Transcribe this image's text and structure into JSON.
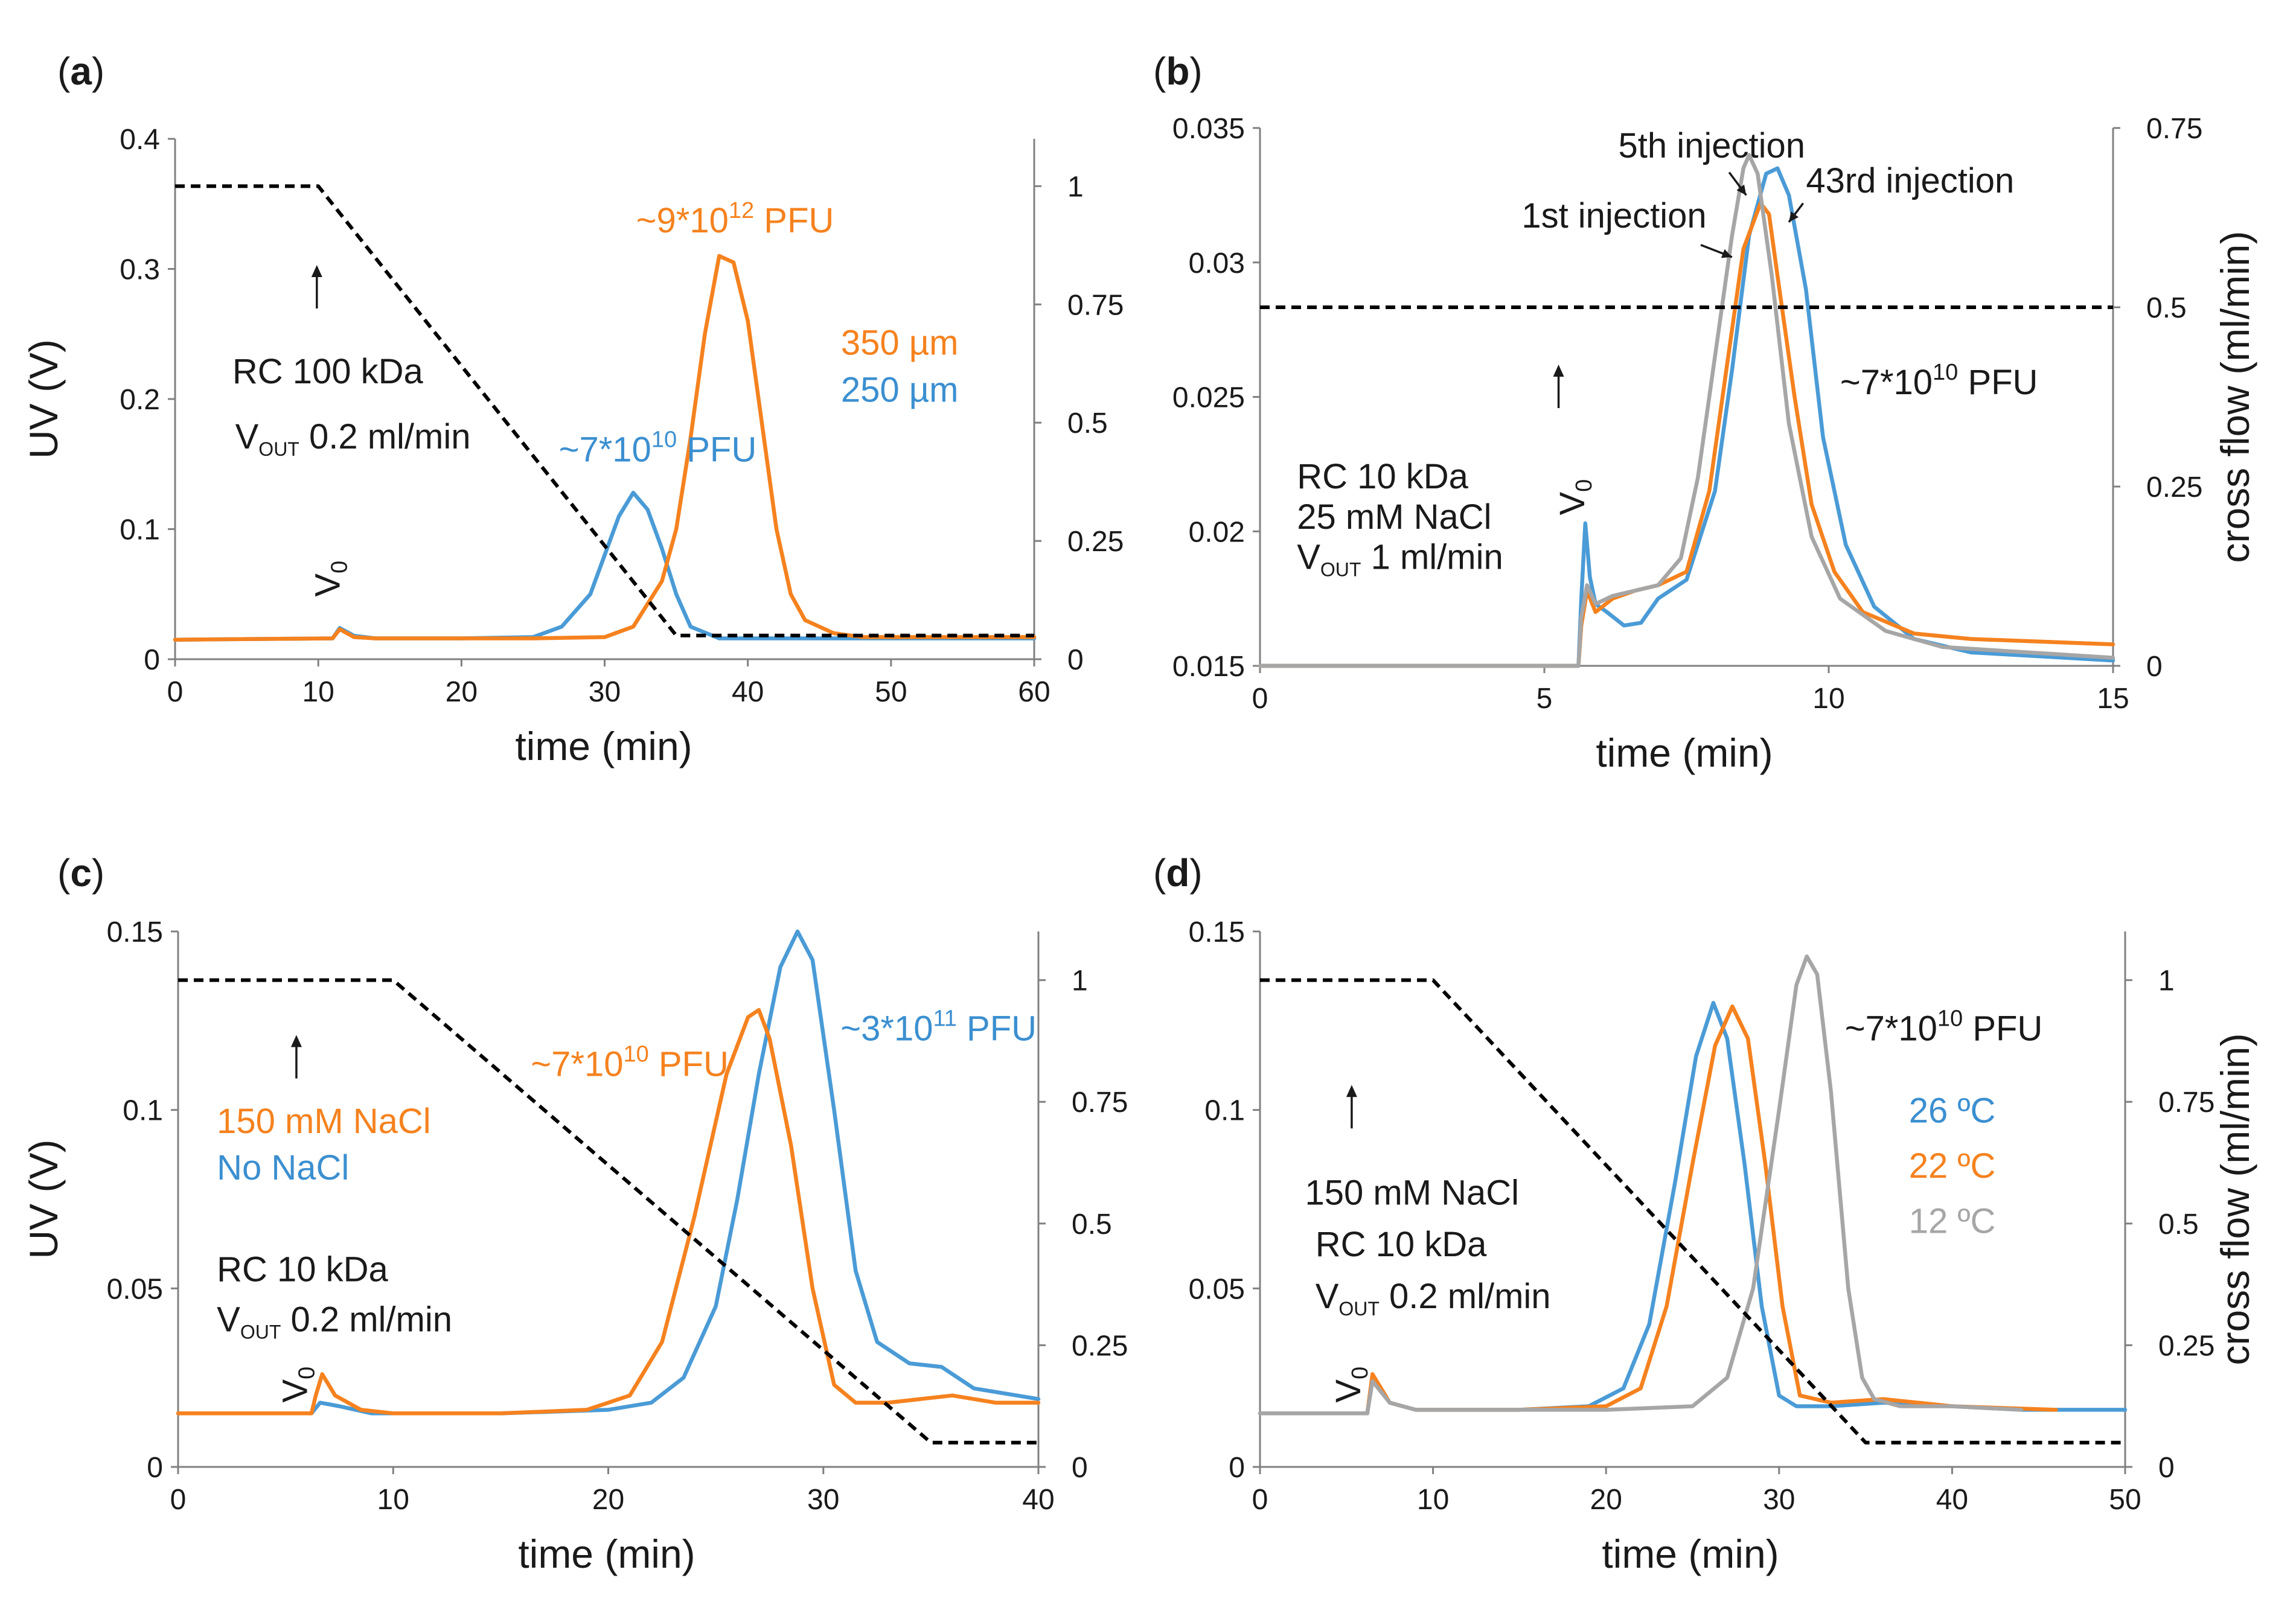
{
  "chart_data": [
    {
      "panel_label": "(a)",
      "type": "line",
      "xlabel": "time (min)",
      "ylabel": "UV (V)",
      "y2label": "",
      "xlim": [
        0,
        60
      ],
      "ylim": [
        0,
        0.4
      ],
      "y2lim": [
        0,
        1.1
      ],
      "xticks": [
        "0",
        "10",
        "20",
        "30",
        "40",
        "50",
        "60"
      ],
      "yticks": [
        "0",
        "0.1",
        "0.2",
        "0.3",
        "0.4"
      ],
      "y2ticks": [
        "0",
        "0.25",
        "0.5",
        "0.75",
        "1"
      ],
      "series": [
        {
          "name": "250 µm",
          "color": "#4a9bd6",
          "axis": "y",
          "dash": false,
          "x": [
            0,
            11.0,
            11.5,
            12.5,
            14,
            20,
            25,
            27,
            29,
            30,
            31,
            32,
            33,
            34,
            35,
            36,
            38,
            40,
            42,
            50,
            60
          ],
          "y": [
            0.015,
            0.016,
            0.024,
            0.018,
            0.016,
            0.016,
            0.017,
            0.025,
            0.05,
            0.08,
            0.11,
            0.128,
            0.115,
            0.085,
            0.05,
            0.025,
            0.016,
            0.016,
            0.016,
            0.016,
            0.016
          ]
        },
        {
          "name": "350 µm",
          "color": "#f5821f",
          "axis": "y",
          "dash": false,
          "x": [
            0,
            11.0,
            11.5,
            12.5,
            14,
            25,
            30,
            32,
            34,
            35,
            36,
            37,
            38,
            39,
            40,
            41,
            42,
            43,
            44,
            46,
            48,
            60
          ],
          "y": [
            0.015,
            0.016,
            0.023,
            0.017,
            0.016,
            0.016,
            0.017,
            0.025,
            0.06,
            0.1,
            0.17,
            0.25,
            0.31,
            0.305,
            0.26,
            0.18,
            0.1,
            0.05,
            0.03,
            0.02,
            0.017,
            0.017
          ]
        },
        {
          "name": "cross flow",
          "color": "#000000",
          "axis": "y2",
          "dash": true,
          "x": [
            0,
            10,
            35,
            60
          ],
          "y": [
            1,
            1,
            0.05,
            0.05
          ]
        }
      ],
      "annotations": [
        {
          "text": "RC 100 kDa",
          "color": "#1a1a1a",
          "x": 4.0,
          "y": 0.212
        },
        {
          "text": "~7*10",
          "sup": "10",
          "after": " PFU",
          "color": "#3b8fd0",
          "x": 26.8,
          "y": 0.152
        },
        {
          "text": "~9*10",
          "sup": "12",
          "after": " PFU",
          "color": "#f5821f",
          "x": 32.2,
          "y": 0.328
        },
        {
          "text": "350 µm",
          "color": "#f5821f",
          "x": 46.5,
          "y": 0.234
        },
        {
          "text": "250 µm",
          "color": "#3b8fd0",
          "x": 46.5,
          "y": 0.198
        }
      ],
      "vout_label": {
        "pre": "V",
        "sub": "OUT",
        "post": " 0.2 ml/min",
        "x": 4.2,
        "y": 0.162
      },
      "v0_label": {
        "x": 11.5,
        "y": 0.048
      },
      "arrows": [
        {
          "x": 9.9,
          "y": 0.303
        }
      ]
    },
    {
      "panel_label": "(b)",
      "type": "line",
      "xlabel": "time (min)",
      "ylabel": "",
      "y2label": "cross flow (ml/min)",
      "xlim": [
        0,
        15
      ],
      "ylim": [
        0.015,
        0.035
      ],
      "y2lim": [
        0,
        0.75
      ],
      "xticks": [
        "0",
        "5",
        "10",
        "15"
      ],
      "yticks": [
        "0.015",
        "0.02",
        "0.025",
        "0.03",
        "0.035"
      ],
      "y2ticks": [
        "0",
        "0.25",
        "0.5",
        "0.75"
      ],
      "series": [
        {
          "name": "43rd injection",
          "color": "#4a9bd6",
          "axis": "y",
          "dash": false,
          "x": [
            0,
            5.6,
            5.65,
            5.72,
            5.8,
            5.9,
            6.1,
            6.4,
            6.7,
            7.0,
            7.5,
            8.0,
            8.3,
            8.6,
            8.9,
            9.1,
            9.3,
            9.6,
            9.9,
            10.3,
            10.8,
            11.5,
            12.5,
            15
          ],
          "y": [
            0.015,
            0.015,
            0.0175,
            0.0203,
            0.0183,
            0.0173,
            0.017,
            0.0165,
            0.0166,
            0.0175,
            0.0182,
            0.0215,
            0.026,
            0.031,
            0.0333,
            0.0335,
            0.0325,
            0.029,
            0.0235,
            0.0195,
            0.0172,
            0.016,
            0.0155,
            0.0152
          ]
        },
        {
          "name": "1st injection",
          "color": "#f5821f",
          "axis": "y",
          "dash": false,
          "x": [
            0,
            5.6,
            5.65,
            5.75,
            5.9,
            6.2,
            6.6,
            7.0,
            7.5,
            7.9,
            8.2,
            8.5,
            8.8,
            8.95,
            9.1,
            9.4,
            9.7,
            10.1,
            10.6,
            11.5,
            12.5,
            15
          ],
          "y": [
            0.015,
            0.015,
            0.0165,
            0.0178,
            0.017,
            0.0175,
            0.0178,
            0.018,
            0.0185,
            0.0215,
            0.026,
            0.0305,
            0.0322,
            0.0318,
            0.0295,
            0.025,
            0.021,
            0.0185,
            0.017,
            0.0162,
            0.016,
            0.0158
          ]
        },
        {
          "name": "5th injection",
          "color": "#a6a6a6",
          "axis": "y",
          "dash": false,
          "x": [
            0,
            5.6,
            5.65,
            5.75,
            5.9,
            6.2,
            6.6,
            7.0,
            7.4,
            7.7,
            8.0,
            8.3,
            8.5,
            8.6,
            8.75,
            9.0,
            9.3,
            9.7,
            10.2,
            11.0,
            12.0,
            15
          ],
          "y": [
            0.015,
            0.015,
            0.0168,
            0.018,
            0.0173,
            0.0176,
            0.0178,
            0.018,
            0.019,
            0.022,
            0.0265,
            0.031,
            0.0335,
            0.034,
            0.0333,
            0.0295,
            0.024,
            0.0198,
            0.0175,
            0.0163,
            0.0157,
            0.0153
          ]
        },
        {
          "name": "cross flow",
          "color": "#000000",
          "axis": "y2",
          "dash": true,
          "x": [
            0,
            15
          ],
          "y": [
            0.5,
            0.5
          ]
        }
      ],
      "annotations": [
        {
          "text": "5th injection",
          "color": "#1a1a1a",
          "x": 6.3,
          "y": 0.0339
        },
        {
          "text": "43rd injection",
          "color": "#1a1a1a",
          "x": 9.6,
          "y": 0.0326
        },
        {
          "text": "1st injection",
          "color": "#1a1a1a",
          "x": 4.6,
          "y": 0.0313
        },
        {
          "text": "~7*10",
          "sup": "10",
          "after": " PFU",
          "color": "#1a1a1a",
          "x": 10.2,
          "y": 0.0251
        },
        {
          "text": "RC 10 kDa",
          "color": "#1a1a1a",
          "x": 0.65,
          "y": 0.0216
        },
        {
          "text": "25 mM NaCl",
          "color": "#1a1a1a",
          "x": 0.65,
          "y": 0.0201
        }
      ],
      "vout_label": {
        "pre": "V",
        "sub": "OUT",
        "post": " 1 ml/min",
        "x": 0.65,
        "y": 0.0186
      },
      "v0_label": {
        "x": 5.7,
        "y": 0.0206
      },
      "arrows": [
        {
          "x": 5.25,
          "y": 0.0262
        }
      ]
    },
    {
      "panel_label": "(c)",
      "type": "line",
      "xlabel": "time (min)",
      "ylabel": "UV (V)",
      "y2label": "",
      "xlim": [
        0,
        40
      ],
      "ylim": [
        0,
        0.15
      ],
      "y2lim": [
        0,
        1.1
      ],
      "xticks": [
        "0",
        "10",
        "20",
        "30",
        "40"
      ],
      "yticks": [
        "0",
        "0.05",
        "0.1",
        "0.15"
      ],
      "y2ticks": [
        "0",
        "0.25",
        "0.5",
        "0.75",
        "1"
      ],
      "series": [
        {
          "name": "No NaCl",
          "color": "#4a9bd6",
          "axis": "y",
          "dash": false,
          "x": [
            0,
            6.2,
            6.6,
            7.5,
            9,
            15,
            20,
            22,
            23.5,
            25,
            26,
            27,
            28,
            28.8,
            29.5,
            30.5,
            31.5,
            32.5,
            34,
            35.5,
            37,
            40
          ],
          "y": [
            0.015,
            0.015,
            0.018,
            0.017,
            0.015,
            0.015,
            0.016,
            0.018,
            0.025,
            0.045,
            0.075,
            0.11,
            0.14,
            0.15,
            0.142,
            0.1,
            0.055,
            0.035,
            0.029,
            0.028,
            0.022,
            0.019
          ]
        },
        {
          "name": "150 mM NaCl",
          "color": "#f5821f",
          "axis": "y",
          "dash": false,
          "x": [
            0,
            6.2,
            6.4,
            6.7,
            7.3,
            8.5,
            10,
            15,
            19,
            21,
            22.5,
            24,
            25.5,
            26.5,
            27,
            27.5,
            28.5,
            29.5,
            30.5,
            31.5,
            33,
            36,
            38,
            40
          ],
          "y": [
            0.015,
            0.015,
            0.02,
            0.026,
            0.02,
            0.016,
            0.015,
            0.015,
            0.016,
            0.02,
            0.035,
            0.07,
            0.11,
            0.126,
            0.128,
            0.12,
            0.09,
            0.05,
            0.023,
            0.018,
            0.018,
            0.02,
            0.018,
            0.018
          ]
        },
        {
          "name": "cross flow",
          "color": "#000000",
          "axis": "y2",
          "dash": true,
          "x": [
            0,
            10,
            35,
            40
          ],
          "y": [
            1,
            1,
            0.05,
            0.05
          ]
        }
      ],
      "annotations": [
        {
          "text": "~7*10",
          "sup": "10",
          "after": " PFU",
          "color": "#f5821f",
          "x": 16.4,
          "y": 0.1095
        },
        {
          "text": "~3*10",
          "sup": "11",
          "after": " PFU",
          "color": "#3b8fd0",
          "x": 30.8,
          "y": 0.1195
        },
        {
          "text": "150 mM NaCl",
          "color": "#f5821f",
          "x": 1.8,
          "y": 0.0935
        },
        {
          "text": "No NaCl",
          "color": "#3b8fd0",
          "x": 1.8,
          "y": 0.0805
        },
        {
          "text": "RC 10 kDa",
          "color": "#1a1a1a",
          "x": 1.8,
          "y": 0.052
        }
      ],
      "vout_label": {
        "pre": "V",
        "sub": "OUT",
        "post": " 0.2 ml/min",
        "x": 1.8,
        "y": 0.038
      },
      "v0_label": {
        "x": 6.0,
        "y": 0.018
      },
      "arrows": [
        {
          "x": 5.5,
          "y": 0.121
        }
      ]
    },
    {
      "panel_label": "(d)",
      "type": "line",
      "xlabel": "time (min)",
      "ylabel": "",
      "y2label": "cross flow (ml/min)",
      "xlim": [
        0,
        50
      ],
      "ylim": [
        0,
        0.15
      ],
      "y2lim": [
        0,
        1.1
      ],
      "xticks": [
        "0",
        "10",
        "20",
        "30",
        "40",
        "50"
      ],
      "yticks": [
        "0",
        "0.05",
        "0.1",
        "0.15"
      ],
      "y2ticks": [
        "0",
        "0.25",
        "0.5",
        "0.75",
        "1"
      ],
      "series": [
        {
          "name": "26 ºC",
          "color": "#4a9bd6",
          "axis": "y",
          "dash": false,
          "x": [
            0,
            6.2,
            6.5,
            7.5,
            9,
            15,
            19,
            21,
            22.5,
            24,
            25.2,
            26.2,
            27,
            28,
            29,
            30,
            31,
            33,
            36,
            40,
            44,
            50
          ],
          "y": [
            0.015,
            0.015,
            0.025,
            0.018,
            0.016,
            0.016,
            0.017,
            0.022,
            0.04,
            0.08,
            0.115,
            0.13,
            0.12,
            0.085,
            0.045,
            0.02,
            0.017,
            0.017,
            0.018,
            0.017,
            0.016,
            0.016
          ]
        },
        {
          "name": "22 ºC",
          "color": "#f5821f",
          "axis": "y",
          "dash": false,
          "x": [
            0,
            6.2,
            6.5,
            7.5,
            9,
            15,
            20,
            22,
            23.5,
            25,
            26.3,
            27.3,
            28.2,
            29.2,
            30.2,
            31.2,
            33,
            36,
            40,
            46
          ],
          "y": [
            0.015,
            0.015,
            0.026,
            0.018,
            0.016,
            0.016,
            0.017,
            0.022,
            0.045,
            0.085,
            0.118,
            0.129,
            0.12,
            0.085,
            0.045,
            0.02,
            0.018,
            0.019,
            0.017,
            0.016
          ]
        },
        {
          "name": "12 ºC",
          "color": "#a6a6a6",
          "axis": "y",
          "dash": false,
          "x": [
            0,
            6.2,
            6.5,
            7.5,
            9,
            20,
            25,
            27,
            28.5,
            30,
            31,
            31.6,
            32.2,
            33,
            34,
            34.8,
            35.5,
            37,
            40,
            44
          ],
          "y": [
            0.015,
            0.015,
            0.024,
            0.018,
            0.016,
            0.016,
            0.017,
            0.025,
            0.05,
            0.1,
            0.135,
            0.143,
            0.138,
            0.105,
            0.05,
            0.025,
            0.019,
            0.017,
            0.017,
            0.016
          ]
        },
        {
          "name": "cross flow",
          "color": "#000000",
          "axis": "y2",
          "dash": true,
          "x": [
            0,
            10,
            35,
            50
          ],
          "y": [
            1,
            1,
            0.05,
            0.05
          ]
        }
      ],
      "annotations": [
        {
          "text": "~7*10",
          "sup": "10",
          "after": " PFU",
          "color": "#1a1a1a",
          "x": 33.8,
          "y": 0.1195
        },
        {
          "text": "26 ºC",
          "color": "#3b8fd0",
          "x": 37.5,
          "y": 0.0965
        },
        {
          "text": "22 ºC",
          "color": "#f5821f",
          "x": 37.5,
          "y": 0.081
        },
        {
          "text": "12 ºC",
          "color": "#a6a6a6",
          "x": 37.5,
          "y": 0.0655
        },
        {
          "text": "150 mM NaCl",
          "color": "#1a1a1a",
          "x": 2.6,
          "y": 0.0735
        },
        {
          "text": "RC 10 kDa",
          "color": "#1a1a1a",
          "x": 3.2,
          "y": 0.059
        }
      ],
      "vout_label": {
        "pre": "V",
        "sub": "OUT",
        "post": " 0.2 ml/min",
        "x": 3.2,
        "y": 0.0445
      },
      "v0_label": {
        "x": 5.8,
        "y": 0.018
      },
      "arrows": [
        {
          "x": 5.3,
          "y": 0.107
        }
      ]
    }
  ]
}
